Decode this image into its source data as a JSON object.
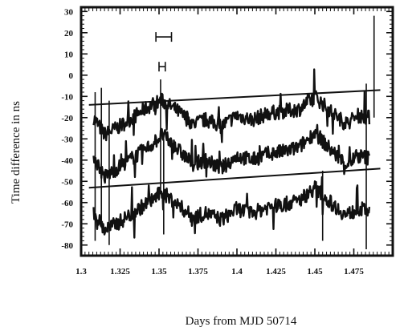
{
  "chart_data": {
    "type": "line",
    "title": "",
    "xlabel": "Days from MJD 50714",
    "ylabel": "Time difference in ns",
    "xlim": [
      1.3,
      1.5
    ],
    "ylim": [
      -85,
      32
    ],
    "x_ticks": [
      1.3,
      1.325,
      1.35,
      1.375,
      1.4,
      1.425,
      1.45,
      1.475
    ],
    "x_tick_labels": [
      "1.3",
      "1.325",
      "1.35",
      "1.375",
      "1.4",
      "1.425",
      "1.45",
      "1.475"
    ],
    "y_ticks": [
      30,
      20,
      10,
      0,
      -10,
      -20,
      -30,
      -40,
      -50,
      -60,
      -70,
      -80
    ],
    "y_tick_labels": [
      "30",
      "20",
      "10",
      "0",
      "-10",
      "-20",
      "-30",
      "-40",
      "-50",
      "-60",
      "-70",
      "-80"
    ],
    "grid": false,
    "series": [
      {
        "x": [
          1.308,
          1.315,
          1.325,
          1.335,
          1.345,
          1.352,
          1.362,
          1.372,
          1.38,
          1.39,
          1.4,
          1.41,
          1.42,
          1.43,
          1.44,
          1.45,
          1.46,
          1.47,
          1.478,
          1.485
        ],
        "values": [
          -20,
          -28,
          -24,
          -19,
          -14,
          -12,
          -17,
          -23,
          -21,
          -24,
          -19,
          -21,
          -18,
          -17,
          -16,
          -10,
          -17,
          -23,
          -19,
          -20
        ]
      },
      {
        "x": [
          1.308,
          1.315,
          1.325,
          1.335,
          1.345,
          1.352,
          1.362,
          1.372,
          1.38,
          1.39,
          1.4,
          1.41,
          1.42,
          1.43,
          1.44,
          1.45,
          1.46,
          1.47,
          1.478,
          1.485
        ],
        "values": [
          -38,
          -48,
          -43,
          -38,
          -33,
          -28,
          -35,
          -42,
          -40,
          -44,
          -38,
          -40,
          -37,
          -36,
          -34,
          -27,
          -35,
          -42,
          -38,
          -39
        ]
      },
      {
        "x": [
          1.308,
          1.315,
          1.325,
          1.335,
          1.345,
          1.352,
          1.362,
          1.372,
          1.38,
          1.39,
          1.4,
          1.41,
          1.42,
          1.43,
          1.44,
          1.45,
          1.46,
          1.47,
          1.478,
          1.485
        ],
        "values": [
          -64,
          -73,
          -69,
          -64,
          -59,
          -55,
          -61,
          -67,
          -65,
          -68,
          -63,
          -65,
          -62,
          -61,
          -59,
          -53,
          -60,
          -66,
          -63,
          -64
        ]
      }
    ],
    "trend_lines": [
      {
        "x": [
          1.305,
          1.492
        ],
        "values": [
          -14,
          -7
        ]
      },
      {
        "x": [
          1.305,
          1.492
        ],
        "values": [
          -53,
          -44
        ]
      }
    ],
    "error_bars": [
      {
        "x": [
          1.348,
          1.358
        ],
        "y": 18
      },
      {
        "x": [
          1.35,
          1.354
        ],
        "y": 4
      }
    ]
  }
}
